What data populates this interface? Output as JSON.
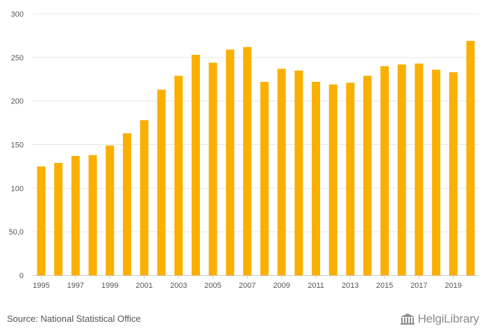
{
  "chart_data": {
    "type": "bar",
    "title": "",
    "xlabel": "",
    "ylabel": "",
    "x": [
      1995,
      1996,
      1997,
      1998,
      1999,
      2000,
      2001,
      2002,
      2003,
      2004,
      2005,
      2006,
      2007,
      2008,
      2009,
      2010,
      2011,
      2012,
      2013,
      2014,
      2015,
      2016,
      2017,
      2018,
      2019,
      2020
    ],
    "values": [
      125,
      129,
      137,
      138,
      149,
      163,
      178,
      213,
      229,
      253,
      244,
      259,
      262,
      222,
      237,
      235,
      222,
      219,
      221,
      229,
      240,
      242,
      243,
      236,
      233,
      269
    ],
    "ylim": [
      0,
      300
    ],
    "y_ticks": [
      0,
      50,
      100,
      150,
      200,
      250,
      300
    ],
    "y_tick_labels": [
      "0",
      "50,0",
      "100",
      "150",
      "200",
      "250",
      "300"
    ],
    "x_tick_labels": [
      "1995",
      "1997",
      "1999",
      "2001",
      "2003",
      "2005",
      "2007",
      "2009",
      "2011",
      "2013",
      "2015",
      "2017",
      "2019"
    ],
    "grid": true,
    "bar_color": "#FBB000"
  },
  "footer": {
    "source": "Source: National Statistical Office",
    "logo": "HelgiLibrary"
  }
}
